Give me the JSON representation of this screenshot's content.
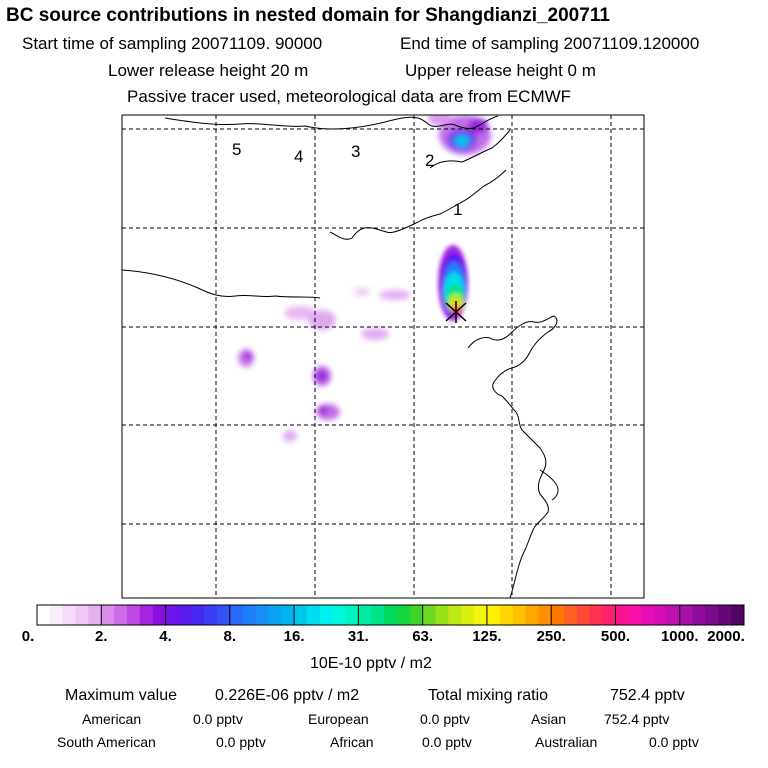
{
  "title": "BC  source contributions in nested domain for Shangdianzi_200711",
  "start_label": "Start time of sampling 20071109. 90000",
  "end_label": "End time of sampling 20071109.120000",
  "lower_label": "Lower release height   20 m",
  "upper_label": "Upper release height    0 m",
  "tracer_label": "Passive tracer used, meteorological data are from ECMWF",
  "region_numbers": [
    "5",
    "4",
    "3",
    "2",
    "1"
  ],
  "colorbar": {
    "ticks": [
      "0.",
      "2.",
      "4.",
      "8.",
      "16.",
      "31.",
      "63.",
      "125.",
      "250.",
      "500.",
      "1000.",
      "2000."
    ],
    "unit": "10E-10 pptv / m2",
    "colors": [
      "#ffffff",
      "#fbeefc",
      "#f6dcf8",
      "#f1c8f4",
      "#e9b0f1",
      "#dc8eec",
      "#cf6ce7",
      "#bf49e4",
      "#a724e0",
      "#8a0fe1",
      "#7013e8",
      "#5a1af0",
      "#4826f4",
      "#3d3cf5",
      "#3353f7",
      "#2b69f9",
      "#1f7ff8",
      "#178ff6",
      "#0aa2f4",
      "#00b5ef",
      "#00c8ea",
      "#00ddee",
      "#00f0f0",
      "#00f8dc",
      "#00f4c0",
      "#00eca4",
      "#00e488",
      "#00dc60",
      "#14d640",
      "#40d428",
      "#6cd820",
      "#98e018",
      "#bce814",
      "#dcee10",
      "#f4f40c",
      "#fff000",
      "#ffd800",
      "#ffc000",
      "#ffa800",
      "#ff9000",
      "#ff7800",
      "#ff6020",
      "#ff4838",
      "#ff3050",
      "#ff2070",
      "#ff1490",
      "#f810a8",
      "#e80cb4",
      "#d40cb4",
      "#c010b0",
      "#a810a8",
      "#900c9c",
      "#780c8c",
      "#640878",
      "#500464"
    ]
  },
  "stats": {
    "max_label": "Maximum value",
    "max_value": "0.226E-06 pptv / m2",
    "total_label": "Total mixing ratio",
    "total_value": "752.4 pptv"
  },
  "contributions": [
    {
      "name": "American",
      "value": "0.0 pptv"
    },
    {
      "name": "European",
      "value": "0.0 pptv"
    },
    {
      "name": "Asian",
      "value": "752.4 pptv"
    },
    {
      "name": "South American",
      "value": "0.0 pptv"
    },
    {
      "name": "African",
      "value": "0.0 pptv"
    },
    {
      "name": "Australian",
      "value": "0.0 pptv"
    }
  ]
}
